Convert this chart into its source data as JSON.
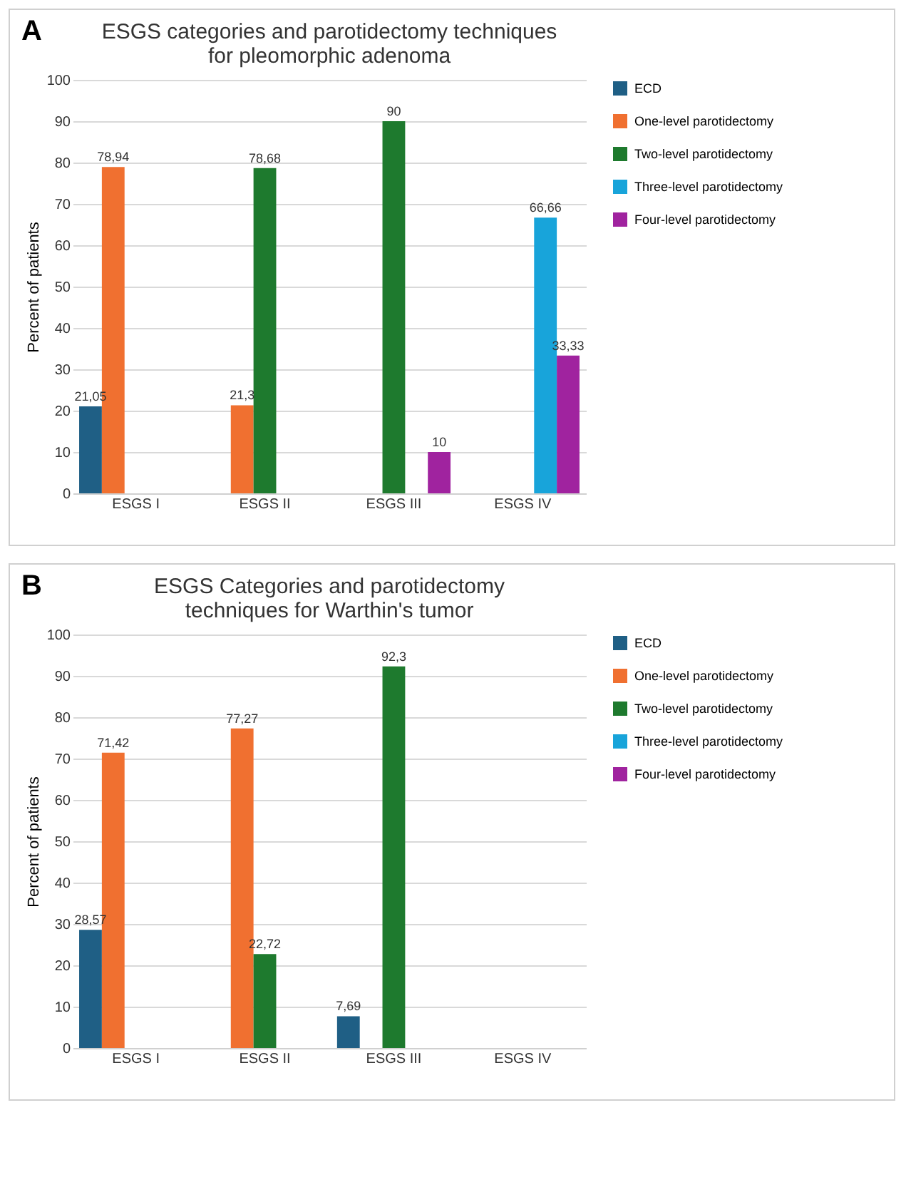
{
  "chart_data": [
    {
      "type": "bar",
      "title": "ESGS categories and parotidectomy techniques for pleomorphic adenoma",
      "annotations": [
        "A"
      ],
      "ylabel": "Percent of patients",
      "categories": [
        "ESGS I",
        "ESGS II",
        "ESGS III",
        "ESGS IV"
      ],
      "ylim": [
        0,
        100
      ],
      "yticks": [
        0,
        10,
        20,
        30,
        40,
        50,
        60,
        70,
        80,
        90,
        100
      ],
      "grid": "y",
      "legend": "right",
      "series": [
        {
          "name": "ECD",
          "color": "#1f5f85",
          "values": [
            21.05,
            null,
            null,
            null
          ],
          "value_labels": [
            "21,05",
            null,
            null,
            null
          ]
        },
        {
          "name": "One-level parotidectomy",
          "color": "#f07030",
          "values": [
            78.94,
            21.3,
            null,
            null
          ],
          "value_labels": [
            "78,94",
            "21,3",
            null,
            null
          ]
        },
        {
          "name": "Two-level parotidectomy",
          "color": "#1e7a2e",
          "values": [
            null,
            78.68,
            90,
            null
          ],
          "value_labels": [
            null,
            "78,68",
            "90",
            null
          ]
        },
        {
          "name": "Three-level parotidectomy",
          "color": "#18a4da",
          "values": [
            null,
            null,
            null,
            66.66
          ],
          "value_labels": [
            null,
            null,
            null,
            "66,66"
          ]
        },
        {
          "name": "Four-level parotidectomy",
          "color": "#a0239f",
          "values": [
            null,
            null,
            10,
            33.33
          ],
          "value_labels": [
            null,
            null,
            "10",
            "33,33"
          ]
        }
      ]
    },
    {
      "type": "bar",
      "title": "ESGS Categories and parotidectomy techniques for Warthin's tumor",
      "annotations": [
        "B"
      ],
      "ylabel": "Percent of patients",
      "categories": [
        "ESGS I",
        "ESGS II",
        "ESGS III",
        "ESGS IV"
      ],
      "ylim": [
        0,
        100
      ],
      "yticks": [
        0,
        10,
        20,
        30,
        40,
        50,
        60,
        70,
        80,
        90,
        100
      ],
      "grid": "y",
      "legend": "right",
      "series": [
        {
          "name": "ECD",
          "color": "#1f5f85",
          "values": [
            28.57,
            null,
            7.69,
            null
          ],
          "value_labels": [
            "28,57",
            null,
            "7,69",
            null
          ]
        },
        {
          "name": "One-level parotidectomy",
          "color": "#f07030",
          "values": [
            71.42,
            77.27,
            null,
            null
          ],
          "value_labels": [
            "71,42",
            "77,27",
            null,
            null
          ]
        },
        {
          "name": "Two-level parotidectomy",
          "color": "#1e7a2e",
          "values": [
            null,
            22.72,
            92.3,
            null
          ],
          "value_labels": [
            null,
            "22,72",
            "92,3",
            null
          ]
        },
        {
          "name": "Three-level parotidectomy",
          "color": "#18a4da",
          "values": [
            null,
            null,
            null,
            null
          ]
        },
        {
          "name": "Four-level parotidectomy",
          "color": "#a0239f",
          "values": [
            null,
            null,
            null,
            null
          ]
        }
      ]
    }
  ]
}
